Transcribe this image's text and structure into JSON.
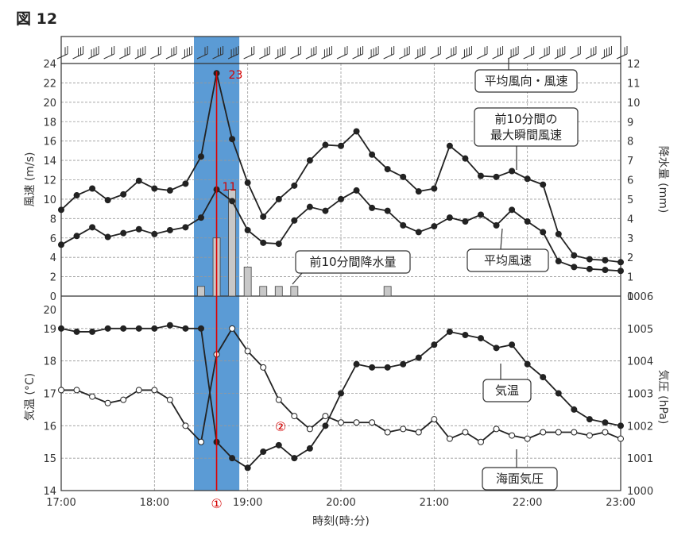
{
  "figure_title": "図 12",
  "colors": {
    "highlight": "#5b9bd5",
    "marker_line": "#e00000",
    "line": "#222222",
    "bar_fill": "#c8c8c8"
  },
  "chart_data": [
    {
      "type": "line",
      "panel": "upper",
      "xlabel": "時刻(時:分)",
      "ylabel_left": "風速 (m/s)",
      "ylabel_right": "降水量 (mm)",
      "ylim_left": [
        0,
        24
      ],
      "ylim_right": [
        0,
        12
      ],
      "xlim": [
        "17:00",
        "23:00"
      ],
      "x_ticks": [
        "17:00",
        "18:00",
        "19:00",
        "20:00",
        "21:00",
        "22:00",
        "23:00"
      ],
      "y_ticks_left": [
        0,
        2,
        4,
        6,
        8,
        10,
        12,
        14,
        16,
        18,
        20,
        22,
        24
      ],
      "y_ticks_right": [
        0,
        1,
        2,
        3,
        4,
        5,
        6,
        7,
        8,
        9,
        10,
        11,
        12
      ],
      "grid": true,
      "x": [
        "17:00",
        "17:10",
        "17:20",
        "17:30",
        "17:40",
        "17:50",
        "18:00",
        "18:10",
        "18:20",
        "18:30",
        "18:40",
        "18:50",
        "19:00",
        "19:10",
        "19:20",
        "19:30",
        "19:40",
        "19:50",
        "20:00",
        "20:10",
        "20:20",
        "20:30",
        "20:40",
        "20:50",
        "21:00",
        "21:10",
        "21:20",
        "21:30",
        "21:40",
        "21:50",
        "22:00",
        "22:10",
        "22:20",
        "22:30",
        "22:40",
        "22:50",
        "23:00"
      ],
      "series": [
        {
          "name": "前10分間の最大瞬間風速",
          "axis": "left",
          "values": [
            8.9,
            10.4,
            11.1,
            9.9,
            10.5,
            11.9,
            11.1,
            10.9,
            11.6,
            14.4,
            23,
            16.2,
            11.7,
            8.2,
            10,
            11.4,
            14,
            15.6,
            15.5,
            17,
            14.6,
            13.1,
            12.3,
            10.8,
            11.1,
            15.5,
            14.2,
            12.4,
            12.3,
            12.9,
            12.1,
            11.5,
            6.4,
            4.2,
            3.8,
            3.7,
            3.5
          ]
        },
        {
          "name": "平均風速",
          "axis": "left",
          "values": [
            5.3,
            6.2,
            7.1,
            6.1,
            6.5,
            6.9,
            6.4,
            6.8,
            7.1,
            8.1,
            11,
            9.8,
            6.8,
            5.5,
            5.4,
            7.8,
            9.2,
            8.8,
            10,
            10.9,
            9.1,
            8.8,
            7.3,
            6.6,
            7.2,
            8.1,
            7.7,
            8.4,
            7.3,
            8.9,
            7.7,
            6.6,
            3.6,
            3,
            2.8,
            2.7,
            2.6
          ]
        },
        {
          "name": "前10分間降水量",
          "type": "bar",
          "axis": "right",
          "x": [
            "18:30",
            "18:40",
            "18:50",
            "19:00",
            "19:10",
            "19:20",
            "19:30",
            "20:30"
          ],
          "values": [
            0.5,
            3,
            5.5,
            1.5,
            0.5,
            0.5,
            0.5,
            0.5
          ]
        }
      ],
      "wind_barbs_label": "平均風向・風速",
      "annotations": [
        {
          "text": "平均風向・風速"
        },
        {
          "text_lines": [
            "前10分間の",
            "最大瞬間風速"
          ]
        },
        {
          "text": "前10分間降水量"
        },
        {
          "text": "平均風速"
        },
        {
          "text": "23",
          "color": "red"
        },
        {
          "text": "11",
          "color": "red"
        }
      ],
      "highlight_x_range": [
        "18:30",
        "18:50"
      ],
      "vertical_marker_x": "18:40"
    },
    {
      "type": "line",
      "panel": "lower",
      "xlabel": "時刻(時:分)",
      "ylabel_left": "気温 (°C)",
      "ylabel_right": "気圧 (hPa)",
      "ylim_left": [
        14,
        20
      ],
      "ylim_right": [
        1000,
        1006
      ],
      "y_ticks_left": [
        14,
        15,
        16,
        17,
        18,
        19,
        20
      ],
      "y_ticks_right": [
        1000,
        1001,
        1002,
        1003,
        1004,
        1005,
        1006
      ],
      "grid": true,
      "x": [
        "17:00",
        "17:10",
        "17:20",
        "17:30",
        "17:40",
        "17:50",
        "18:00",
        "18:10",
        "18:20",
        "18:30",
        "18:40",
        "18:50",
        "19:00",
        "19:10",
        "19:20",
        "19:30",
        "19:40",
        "19:50",
        "20:00",
        "20:10",
        "20:20",
        "20:30",
        "20:40",
        "20:50",
        "21:00",
        "21:10",
        "21:20",
        "21:30",
        "21:40",
        "21:50",
        "22:00",
        "22:10",
        "22:20",
        "22:30",
        "22:40",
        "22:50",
        "23:00"
      ],
      "series": [
        {
          "name": "気温",
          "axis": "left",
          "marker": "filled",
          "values": [
            19,
            18.9,
            18.9,
            19,
            19,
            19,
            19,
            19.1,
            19,
            19,
            15.5,
            15,
            14.7,
            15.2,
            15.4,
            15,
            15.3,
            16,
            17,
            17.9,
            17.8,
            17.8,
            17.9,
            18.1,
            18.5,
            18.9,
            18.8,
            18.7,
            18.4,
            18.5,
            17.9,
            17.5,
            17,
            16.5,
            16.2,
            16.1,
            16
          ]
        },
        {
          "name": "海面気圧",
          "axis": "right",
          "marker": "open",
          "values": [
            1003.1,
            1003.1,
            1002.9,
            1002.7,
            1002.8,
            1003.1,
            1003.1,
            1002.8,
            1002,
            1001.5,
            1004.2,
            1005,
            1004.3,
            1003.8,
            1002.8,
            1002.3,
            1001.9,
            1002.3,
            1002.1,
            1002.1,
            1002.1,
            1001.8,
            1001.9,
            1001.8,
            1002.2,
            1001.6,
            1001.8,
            1001.5,
            1001.9,
            1001.7,
            1001.6,
            1001.8,
            1001.8,
            1001.8,
            1001.7,
            1001.8,
            1001.6
          ]
        }
      ],
      "annotations": [
        {
          "text": "気温"
        },
        {
          "text": "海面気圧"
        },
        {
          "text": "②",
          "color": "red"
        },
        {
          "text": "①",
          "color": "red"
        }
      ]
    }
  ]
}
